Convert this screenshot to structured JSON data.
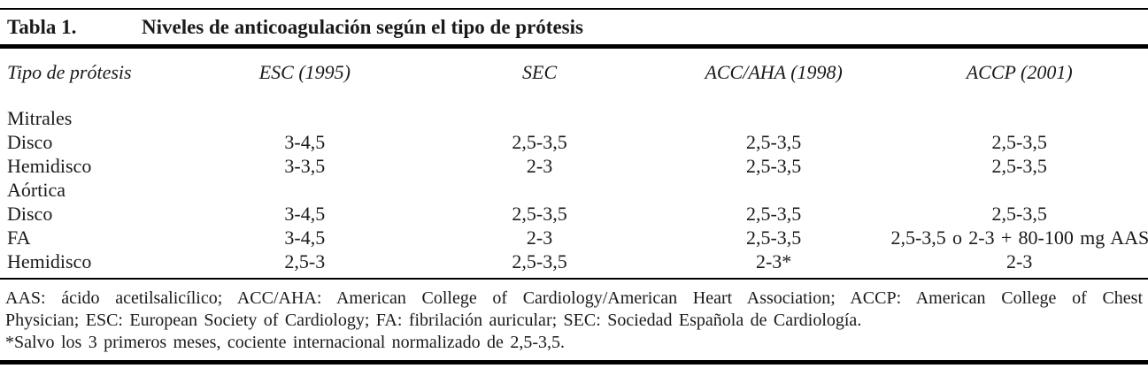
{
  "colors": {
    "background": "#ffffff",
    "text": "#1a1a1a",
    "rule": "#000000"
  },
  "caption": {
    "label": "Tabla 1.",
    "title": "Niveles de anticoagulación según el tipo de prótesis"
  },
  "table": {
    "columns": [
      "Tipo de prótesis",
      "ESC (1995)",
      "SEC",
      "ACC/AHA (1998)",
      "ACCP (2001)"
    ],
    "rows": [
      {
        "type": "section",
        "cells": [
          "Mitrales",
          "",
          "",
          "",
          ""
        ]
      },
      {
        "type": "data",
        "cells": [
          "Disco",
          "3-4,5",
          "2,5-3,5",
          "2,5-3,5",
          "2,5-3,5"
        ]
      },
      {
        "type": "data",
        "cells": [
          "Hemidisco",
          "3-3,5",
          "2-3",
          "2,5-3,5",
          "2,5-3,5"
        ]
      },
      {
        "type": "section",
        "cells": [
          "Aórtica",
          "",
          "",
          "",
          ""
        ]
      },
      {
        "type": "data",
        "cells": [
          "Disco",
          "3-4,5",
          "2,5-3,5",
          "2,5-3,5",
          "2,5-3,5"
        ]
      },
      {
        "type": "data",
        "cells": [
          "FA",
          "3-4,5",
          "2-3",
          "2,5-3,5",
          "2,5-3,5 o 2-3 + 80-100 mg AAS"
        ]
      },
      {
        "type": "data",
        "cells": [
          "Hemidisco",
          "2,5-3",
          "2,5-3,5",
          "2-3*",
          "2-3"
        ]
      }
    ]
  },
  "footnotes": {
    "abbreviations_line1": "AAS: ácido acetilsalicílico; ACC/AHA: American College of Cardiology/American Heart Association; ACCP: American College of Chest",
    "abbreviations_line2": "Physician; ESC: European Society of Cardiology; FA: fibrilación auricular; SEC: Sociedad Española de Cardiología.",
    "asterisk_note": "*Salvo los 3 primeros meses, cociente internacional normalizado de 2,5-3,5."
  }
}
